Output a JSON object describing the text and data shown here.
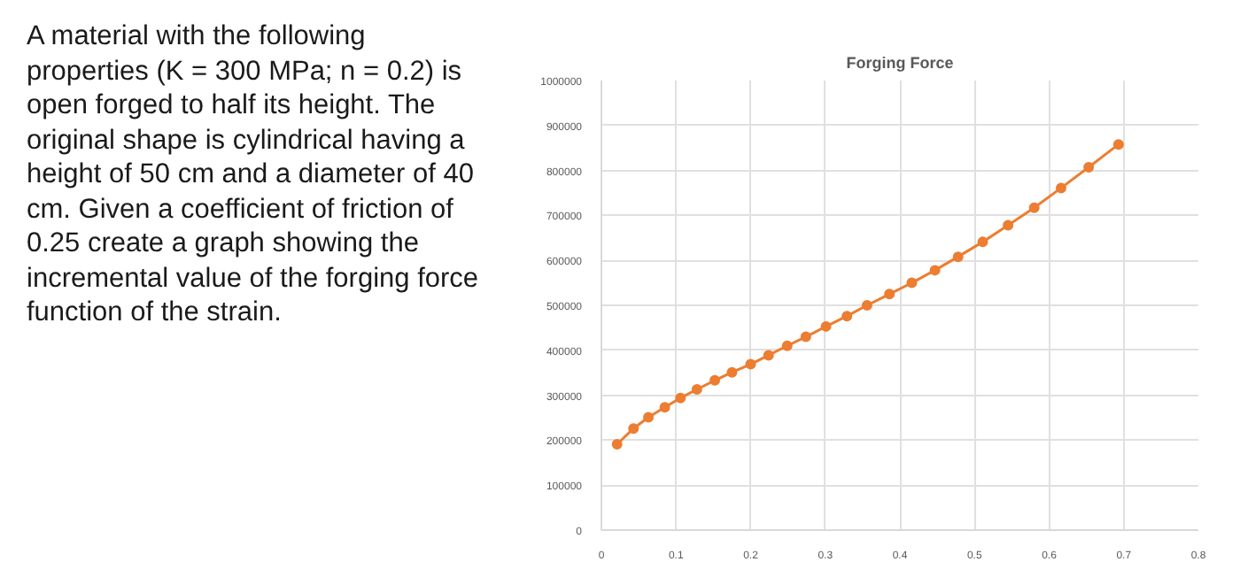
{
  "chart_data": {
    "type": "line",
    "title": "Forging Force",
    "annotations": [
      "A material with the following properties (K = 300 MPa; n = 0.2) is open forged to half its height. The original shape is cylindrical having a height of 50 cm and a diameter of 40 cm. Given a coefficient of friction of 0.25 create a graph showing the incremental value of the forging force function of the strain."
    ],
    "x": [
      0.021,
      0.043,
      0.063,
      0.085,
      0.106,
      0.128,
      0.152,
      0.175,
      0.2,
      0.224,
      0.249,
      0.274,
      0.301,
      0.329,
      0.356,
      0.386,
      0.416,
      0.447,
      0.478,
      0.511,
      0.545,
      0.58,
      0.616,
      0.653,
      0.693
    ],
    "series": [
      {
        "color": "#ed7d31",
        "values": [
          191000,
          226000,
          251000,
          273000,
          294000,
          313000,
          333000,
          351000,
          369000,
          389000,
          410000,
          430000,
          453000,
          476000,
          500000,
          525000,
          550000,
          578000,
          608000,
          641000,
          678000,
          717000,
          761000,
          807000,
          858000
        ]
      }
    ],
    "xlim": [
      0,
      0.8
    ],
    "xticks": [
      0,
      0.1,
      0.2,
      0.3,
      0.4,
      0.5,
      0.6,
      0.7,
      0.8
    ],
    "ylim": [
      0,
      1000000
    ],
    "yticks": [
      0,
      100000,
      200000,
      300000,
      400000,
      500000,
      600000,
      700000,
      800000,
      900000,
      1000000
    ],
    "grid": true,
    "marker": "circle",
    "line_style": "solid"
  }
}
